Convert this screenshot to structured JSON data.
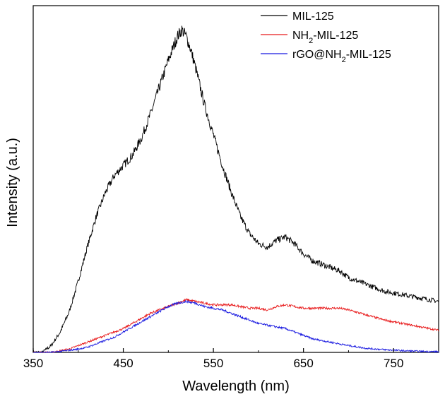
{
  "chart_data": {
    "type": "line",
    "xlabel": "Wavelength (nm)",
    "ylabel": "Intensity (a.u.)",
    "xlim": [
      350,
      800
    ],
    "ylim": [
      0,
      1.0
    ],
    "xticks": [
      "350",
      "450",
      "550",
      "650",
      "750"
    ],
    "xtick_values": [
      350,
      450,
      550,
      650,
      750
    ],
    "legend_position": "top-right",
    "grid": false,
    "series": [
      {
        "name": "MIL-125",
        "legend_parts": {
          "pre": "MIL-125",
          "sub": "",
          "post": ""
        },
        "color": "#000000",
        "noise": 0.012,
        "x": [
          350,
          360,
          370,
          380,
          390,
          400,
          410,
          420,
          430,
          440,
          450,
          460,
          470,
          480,
          490,
          500,
          510,
          515,
          520,
          525,
          530,
          540,
          550,
          560,
          570,
          580,
          590,
          600,
          610,
          620,
          630,
          640,
          650,
          660,
          670,
          680,
          690,
          700,
          720,
          740,
          760,
          780,
          800
        ],
        "values": [
          0.0,
          0.0,
          0.02,
          0.06,
          0.12,
          0.21,
          0.31,
          0.4,
          0.47,
          0.52,
          0.55,
          0.58,
          0.63,
          0.7,
          0.78,
          0.86,
          0.93,
          0.95,
          0.93,
          0.89,
          0.84,
          0.73,
          0.64,
          0.55,
          0.47,
          0.4,
          0.35,
          0.32,
          0.31,
          0.33,
          0.34,
          0.32,
          0.29,
          0.27,
          0.26,
          0.25,
          0.24,
          0.22,
          0.2,
          0.18,
          0.17,
          0.16,
          0.15
        ]
      },
      {
        "name": "NH2-MIL-125",
        "legend_parts": {
          "pre": "NH",
          "sub": "2",
          "post": "-MIL-125"
        },
        "color": "#e8191a",
        "noise": 0.006,
        "x": [
          350,
          370,
          380,
          390,
          400,
          410,
          420,
          430,
          440,
          450,
          460,
          470,
          480,
          490,
          500,
          510,
          520,
          530,
          540,
          550,
          560,
          570,
          580,
          590,
          600,
          610,
          620,
          630,
          640,
          650,
          660,
          670,
          680,
          690,
          700,
          720,
          740,
          760,
          780,
          800
        ],
        "values": [
          0.0,
          0.0,
          0.005,
          0.01,
          0.02,
          0.03,
          0.04,
          0.05,
          0.06,
          0.07,
          0.085,
          0.1,
          0.115,
          0.125,
          0.135,
          0.145,
          0.155,
          0.15,
          0.145,
          0.14,
          0.14,
          0.14,
          0.135,
          0.13,
          0.13,
          0.125,
          0.135,
          0.14,
          0.135,
          0.13,
          0.13,
          0.13,
          0.13,
          0.13,
          0.125,
          0.11,
          0.095,
          0.085,
          0.075,
          0.065
        ]
      },
      {
        "name": "rGO@NH2-MIL-125",
        "legend_parts": {
          "pre": "rGO@NH",
          "sub": "2",
          "post": "-MIL-125"
        },
        "color": "#1818e0",
        "noise": 0.006,
        "x": [
          350,
          370,
          380,
          390,
          400,
          410,
          420,
          430,
          440,
          450,
          460,
          470,
          480,
          490,
          500,
          510,
          520,
          530,
          540,
          550,
          560,
          570,
          580,
          590,
          600,
          610,
          620,
          630,
          640,
          650,
          660,
          670,
          680,
          690,
          700,
          720,
          740,
          760,
          780,
          800
        ],
        "values": [
          0.0,
          0.0,
          0.003,
          0.006,
          0.01,
          0.015,
          0.025,
          0.035,
          0.045,
          0.06,
          0.075,
          0.09,
          0.105,
          0.12,
          0.135,
          0.145,
          0.15,
          0.145,
          0.135,
          0.13,
          0.125,
          0.115,
          0.105,
          0.095,
          0.085,
          0.08,
          0.075,
          0.07,
          0.06,
          0.05,
          0.04,
          0.035,
          0.03,
          0.025,
          0.02,
          0.012,
          0.008,
          0.005,
          0.003,
          0.002
        ]
      }
    ]
  }
}
